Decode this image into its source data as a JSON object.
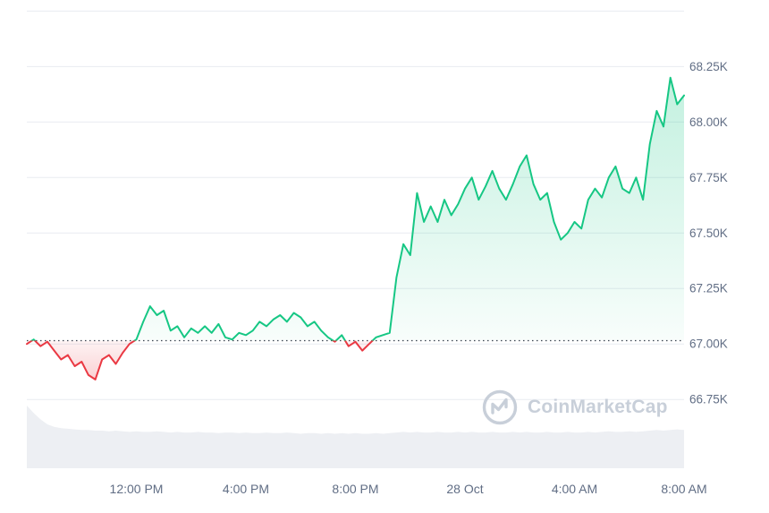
{
  "watermark": {
    "text": "CoinMarketCap"
  },
  "chart_data": {
    "type": "area",
    "title": "",
    "baseline_value": 67.015,
    "ylim": [
      66.44,
      68.55
    ],
    "grid_values": [
      68.5,
      68.25,
      68.0,
      67.75,
      67.5,
      67.25,
      67.0,
      66.75
    ],
    "y_ticks": [
      {
        "label": "68.25K",
        "value": 68.25
      },
      {
        "label": "68.00K",
        "value": 68.0
      },
      {
        "label": "67.75K",
        "value": 67.75
      },
      {
        "label": "67.50K",
        "value": 67.5
      },
      {
        "label": "67.25K",
        "value": 67.25
      },
      {
        "label": "67.00K",
        "value": 67.0
      },
      {
        "label": "66.75K",
        "value": 66.75
      }
    ],
    "x_ticks": [
      {
        "label": "12:00 PM",
        "index": 16
      },
      {
        "label": "4:00 PM",
        "index": 32
      },
      {
        "label": "8:00 PM",
        "index": 48
      },
      {
        "label": "28 Oct",
        "index": 64
      },
      {
        "label": "4:00 AM",
        "index": 80
      },
      {
        "label": "8:00 AM",
        "index": 96
      }
    ],
    "x_interval_minutes": 15,
    "series": [
      {
        "name": "price",
        "unit": "K",
        "values": [
          67.0,
          67.02,
          66.99,
          67.01,
          66.97,
          66.93,
          66.95,
          66.9,
          66.92,
          66.86,
          66.84,
          66.93,
          66.95,
          66.91,
          66.96,
          67.0,
          67.02,
          67.1,
          67.17,
          67.13,
          67.15,
          67.06,
          67.08,
          67.03,
          67.07,
          67.05,
          67.08,
          67.05,
          67.09,
          67.03,
          67.02,
          67.05,
          67.04,
          67.06,
          67.1,
          67.08,
          67.11,
          67.13,
          67.1,
          67.14,
          67.12,
          67.08,
          67.1,
          67.06,
          67.03,
          67.01,
          67.04,
          66.99,
          67.01,
          66.97,
          67.0,
          67.03,
          67.04,
          67.05,
          67.3,
          67.45,
          67.4,
          67.68,
          67.55,
          67.62,
          67.55,
          67.65,
          67.58,
          67.63,
          67.7,
          67.75,
          67.65,
          67.71,
          67.78,
          67.7,
          67.65,
          67.72,
          67.8,
          67.85,
          67.72,
          67.65,
          67.68,
          67.55,
          67.47,
          67.5,
          67.55,
          67.52,
          67.65,
          67.7,
          67.66,
          67.75,
          67.8,
          67.7,
          67.68,
          67.75,
          67.65,
          67.9,
          68.05,
          67.98,
          68.2,
          68.08,
          68.12
        ]
      }
    ],
    "volume_profile": [
      1.0,
      0.88,
      0.78,
      0.7,
      0.66,
      0.64,
      0.63,
      0.62,
      0.61,
      0.61,
      0.6,
      0.6,
      0.59,
      0.6,
      0.59,
      0.58,
      0.59,
      0.58,
      0.58,
      0.59,
      0.58,
      0.57,
      0.58,
      0.57,
      0.57,
      0.58,
      0.57,
      0.57,
      0.56,
      0.57,
      0.57,
      0.56,
      0.57,
      0.56,
      0.56,
      0.57,
      0.56,
      0.56,
      0.57,
      0.56,
      0.55,
      0.56,
      0.56,
      0.55,
      0.56,
      0.55,
      0.56,
      0.55,
      0.56,
      0.55,
      0.55,
      0.56,
      0.55,
      0.56,
      0.57,
      0.58,
      0.57,
      0.58,
      0.57,
      0.57,
      0.58,
      0.57,
      0.57,
      0.58,
      0.57,
      0.58,
      0.57,
      0.57,
      0.58,
      0.57,
      0.57,
      0.58,
      0.57,
      0.58,
      0.57,
      0.57,
      0.58,
      0.57,
      0.57,
      0.58,
      0.57,
      0.57,
      0.58,
      0.57,
      0.58,
      0.59,
      0.58,
      0.58,
      0.59,
      0.58,
      0.59,
      0.6,
      0.61,
      0.6,
      0.61,
      0.62,
      0.61
    ],
    "colors": {
      "up": "#16c784",
      "down": "#ea3943",
      "grid": "#e8ebf1",
      "axis_text": "#616e85",
      "baseline": "#39414e",
      "volume": "#edeff3",
      "watermark": "#c8cfd9"
    }
  }
}
